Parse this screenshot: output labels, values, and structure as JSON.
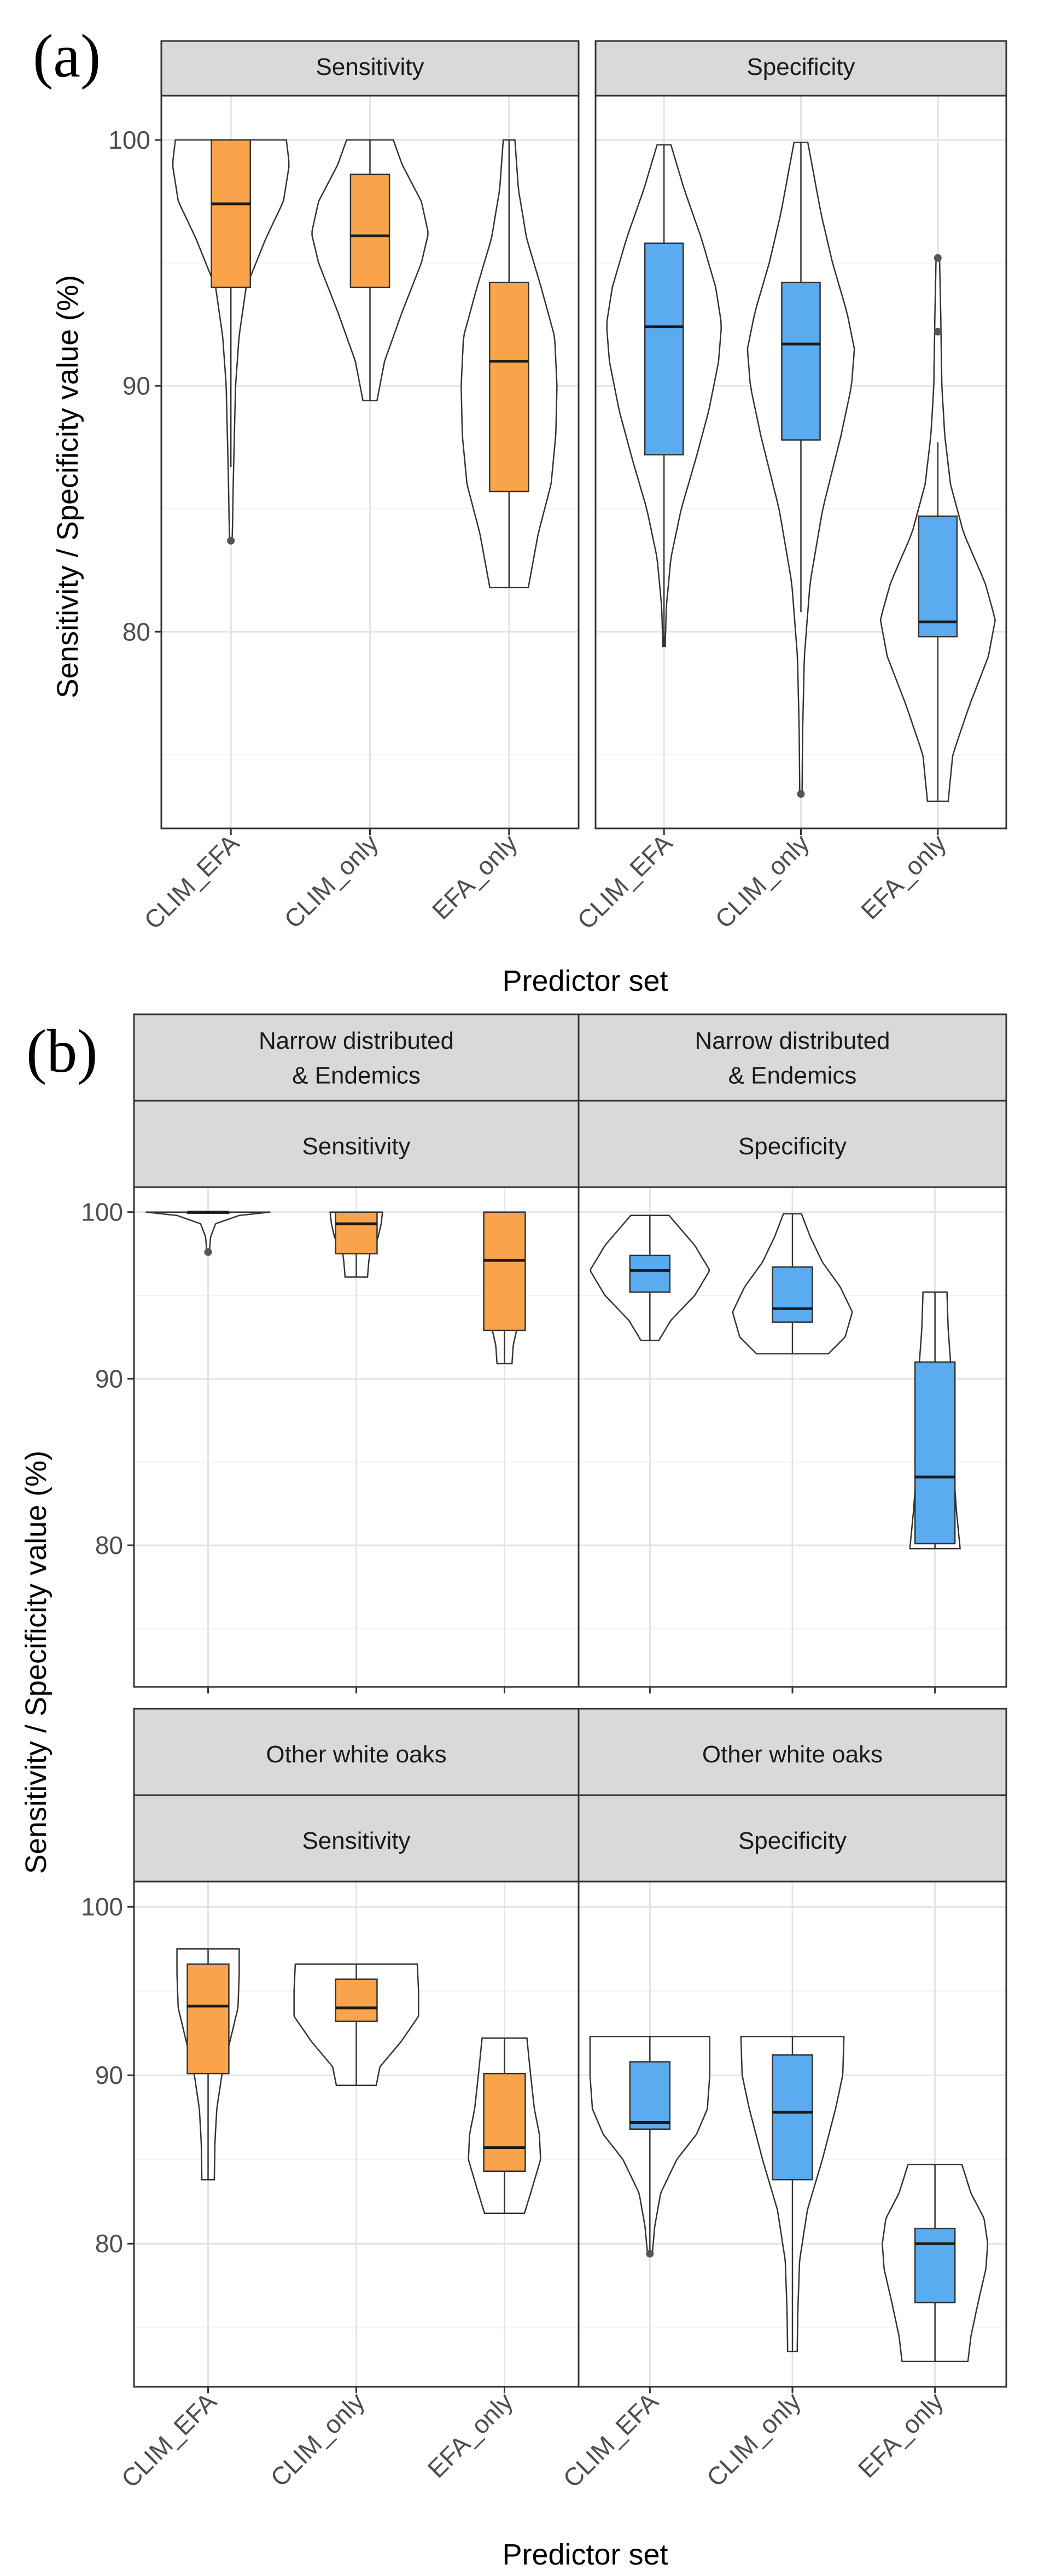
{
  "figure": {
    "x_title": "Predictor set",
    "y_title": "Sensitivity / Specificity value (%)"
  },
  "colors": {
    "sensitivity": "#f9a44a",
    "specificity": "#5aabf0",
    "strip_fill": "#d9d9d9",
    "grid_major": "#e4e4e4",
    "grid_minor": "#f2f2f2",
    "outline": "#333333"
  },
  "chart_data": [
    {
      "type": "violin+box",
      "panel_label": "(a)",
      "categories": [
        "CLIM_EFA",
        "CLIM_only",
        "EFA_only"
      ],
      "ylim": [
        72,
        101.8
      ],
      "yticks": [
        80,
        90,
        100
      ],
      "grid": true,
      "facets": [
        {
          "strip": [
            "Sensitivity"
          ],
          "color_key": "sensitivity",
          "groups": [
            {
              "q1": 94.0,
              "median": 97.4,
              "q3": 100.0,
              "wlow": 86.7,
              "whigh": 100.0,
              "outliers": [
                83.7
              ],
              "vmin": 83.6,
              "vmax": 100.0,
              "shape": [
                [
                  83.6,
                  0.02
                ],
                [
                  84.5,
                  0.03
                ],
                [
                  86,
                  0.04
                ],
                [
                  88,
                  0.06
                ],
                [
                  90,
                  0.08
                ],
                [
                  92,
                  0.14
                ],
                [
                  94,
                  0.26
                ],
                [
                  96,
                  0.6
                ],
                [
                  97.5,
                  0.9
                ],
                [
                  99,
                  1.0
                ],
                [
                  100,
                  0.95
                ]
              ]
            },
            {
              "q1": 94.0,
              "median": 96.1,
              "q3": 98.6,
              "wlow": 89.4,
              "whigh": 100.0,
              "outliers": [],
              "vmin": 89.4,
              "vmax": 100.0,
              "shape": [
                [
                  89.4,
                  0.12
                ],
                [
                  91,
                  0.25
                ],
                [
                  93,
                  0.55
                ],
                [
                  95,
                  0.88
                ],
                [
                  96.2,
                  1.0
                ],
                [
                  97.5,
                  0.88
                ],
                [
                  99,
                  0.55
                ],
                [
                  100,
                  0.4
                ]
              ]
            },
            {
              "q1": 85.7,
              "median": 91.0,
              "q3": 94.2,
              "wlow": 81.8,
              "whigh": 100.0,
              "outliers": [],
              "vmin": 81.8,
              "vmax": 100.0,
              "shape": [
                [
                  81.8,
                  0.33
                ],
                [
                  84,
                  0.5
                ],
                [
                  86,
                  0.72
                ],
                [
                  88,
                  0.8
                ],
                [
                  90,
                  0.82
                ],
                [
                  92,
                  0.78
                ],
                [
                  94,
                  0.55
                ],
                [
                  96,
                  0.3
                ],
                [
                  98,
                  0.16
                ],
                [
                  100,
                  0.1
                ]
              ]
            }
          ]
        },
        {
          "strip": [
            "Specificity"
          ],
          "color_key": "specificity",
          "groups": [
            {
              "q1": 87.2,
              "median": 92.4,
              "q3": 95.8,
              "wlow": 79.4,
              "whigh": 99.8,
              "outliers": [],
              "vmin": 79.4,
              "vmax": 99.8,
              "shape": [
                [
                  79.4,
                  0.02
                ],
                [
                  81,
                  0.04
                ],
                [
                  83,
                  0.12
                ],
                [
                  85,
                  0.3
                ],
                [
                  87,
                  0.55
                ],
                [
                  89,
                  0.78
                ],
                [
                  91,
                  0.95
                ],
                [
                  92.5,
                  1.0
                ],
                [
                  94,
                  0.9
                ],
                [
                  96,
                  0.65
                ],
                [
                  98,
                  0.35
                ],
                [
                  99.8,
                  0.12
                ]
              ]
            },
            {
              "q1": 87.8,
              "median": 91.7,
              "q3": 94.2,
              "wlow": 80.8,
              "whigh": 99.9,
              "outliers": [
                73.4
              ],
              "vmin": 73.4,
              "vmax": 99.9,
              "shape": [
                [
                  73.4,
                  0.02
                ],
                [
                  76,
                  0.03
                ],
                [
                  79,
                  0.06
                ],
                [
                  82,
                  0.16
                ],
                [
                  85,
                  0.38
                ],
                [
                  88,
                  0.7
                ],
                [
                  90,
                  0.88
                ],
                [
                  91.5,
                  0.93
                ],
                [
                  93,
                  0.8
                ],
                [
                  95,
                  0.55
                ],
                [
                  97,
                  0.35
                ],
                [
                  99.9,
                  0.12
                ]
              ]
            },
            {
              "q1": 79.8,
              "median": 80.4,
              "q3": 84.7,
              "wlow": 73.1,
              "whigh": 87.7,
              "outliers": [
                92.2,
                95.2
              ],
              "vmin": 73.1,
              "vmax": 95.2,
              "shape": [
                [
                  73.1,
                  0.18
                ],
                [
                  75,
                  0.26
                ],
                [
                  77,
                  0.55
                ],
                [
                  79,
                  0.88
                ],
                [
                  80.5,
                  1.0
                ],
                [
                  82,
                  0.82
                ],
                [
                  84,
                  0.45
                ],
                [
                  86,
                  0.22
                ],
                [
                  88,
                  0.12
                ],
                [
                  90,
                  0.07
                ],
                [
                  93,
                  0.05
                ],
                [
                  95.2,
                  0.03
                ]
              ]
            }
          ]
        }
      ]
    },
    {
      "type": "violin+box",
      "panel_label": "(b)",
      "categories": [
        "CLIM_EFA",
        "CLIM_only",
        "EFA_only"
      ],
      "ylim": [
        71.5,
        101.5
      ],
      "yticks": [
        80,
        90,
        100
      ],
      "grid": true,
      "facets": [
        {
          "strip": [
            "Narrow distributed",
            "& Endemics",
            "Sensitivity"
          ],
          "color_key": "sensitivity",
          "groups": [
            {
              "q1": 100.0,
              "median": 100.0,
              "q3": 100.0,
              "wlow": 100.0,
              "whigh": 100.0,
              "outliers": [
                97.6
              ],
              "vmin": 97.6,
              "vmax": 100.0,
              "shape": [
                [
                  97.6,
                  0.02
                ],
                [
                  98.5,
                  0.04
                ],
                [
                  99.3,
                  0.12
                ],
                [
                  99.8,
                  0.5
                ],
                [
                  100,
                  1.0
                ]
              ]
            },
            {
              "q1": 97.5,
              "median": 99.3,
              "q3": 100.0,
              "wlow": 96.1,
              "whigh": 100.0,
              "outliers": [],
              "vmin": 96.1,
              "vmax": 100.0,
              "shape": [
                [
                  96.1,
                  0.18
                ],
                [
                  97,
                  0.2
                ],
                [
                  97.6,
                  0.22
                ],
                [
                  98.5,
                  0.35
                ],
                [
                  99.3,
                  0.4
                ],
                [
                  100,
                  0.42
                ]
              ]
            },
            {
              "q1": 92.9,
              "median": 97.1,
              "q3": 100.0,
              "wlow": 90.9,
              "whigh": 100.0,
              "outliers": [],
              "vmin": 90.9,
              "vmax": 100.0,
              "shape": [
                [
                  90.9,
                  0.12
                ],
                [
                  92,
                  0.14
                ],
                [
                  93,
                  0.2
                ],
                [
                  95,
                  0.22
                ],
                [
                  97,
                  0.24
                ],
                [
                  98.5,
                  0.25
                ],
                [
                  100,
                  0.26
                ]
              ]
            }
          ]
        },
        {
          "strip": [
            "Narrow distributed",
            "& Endemics",
            "Specificity"
          ],
          "color_key": "specificity",
          "groups": [
            {
              "q1": 95.2,
              "median": 96.5,
              "q3": 97.4,
              "wlow": 92.3,
              "whigh": 99.8,
              "outliers": [],
              "vmin": 92.3,
              "vmax": 99.8,
              "shape": [
                [
                  92.3,
                  0.15
                ],
                [
                  93.5,
                  0.35
                ],
                [
                  95,
                  0.75
                ],
                [
                  96.5,
                  1.0
                ],
                [
                  98,
                  0.75
                ],
                [
                  99.8,
                  0.32
                ]
              ]
            },
            {
              "q1": 93.4,
              "median": 94.2,
              "q3": 96.7,
              "wlow": 91.5,
              "whigh": 99.9,
              "outliers": [],
              "vmin": 91.5,
              "vmax": 99.9,
              "shape": [
                [
                  91.5,
                  0.6
                ],
                [
                  92.5,
                  0.88
                ],
                [
                  94,
                  1.0
                ],
                [
                  95.5,
                  0.8
                ],
                [
                  97,
                  0.5
                ],
                [
                  98.5,
                  0.3
                ],
                [
                  99.9,
                  0.15
                ]
              ]
            },
            {
              "q1": 80.1,
              "median": 84.1,
              "q3": 91.0,
              "wlow": 79.8,
              "whigh": 95.2,
              "outliers": [],
              "vmin": 79.8,
              "vmax": 95.2,
              "shape": [
                [
                  79.8,
                  0.42
                ],
                [
                  82,
                  0.36
                ],
                [
                  85,
                  0.3
                ],
                [
                  88,
                  0.28
                ],
                [
                  91,
                  0.26
                ],
                [
                  93,
                  0.22
                ],
                [
                  95.2,
                  0.2
                ]
              ]
            }
          ]
        },
        {
          "strip": [
            "Other white oaks",
            "Sensitivity"
          ],
          "color_key": "sensitivity",
          "groups": [
            {
              "q1": 90.1,
              "median": 94.1,
              "q3": 96.6,
              "wlow": 83.8,
              "whigh": 97.5,
              "outliers": [],
              "vmin": 83.8,
              "vmax": 97.5,
              "shape": [
                [
                  83.8,
                  0.1
                ],
                [
                  86,
                  0.11
                ],
                [
                  88,
                  0.14
                ],
                [
                  90,
                  0.22
                ],
                [
                  92,
                  0.35
                ],
                [
                  94,
                  0.48
                ],
                [
                  96,
                  0.5
                ],
                [
                  97.5,
                  0.5
                ]
              ]
            },
            {
              "q1": 93.2,
              "median": 94.0,
              "q3": 95.7,
              "wlow": 89.4,
              "whigh": 96.6,
              "outliers": [],
              "vmin": 89.4,
              "vmax": 96.6,
              "shape": [
                [
                  89.4,
                  0.32
                ],
                [
                  90.5,
                  0.38
                ],
                [
                  92,
                  0.72
                ],
                [
                  93.5,
                  1.0
                ],
                [
                  95,
                  1.0
                ],
                [
                  96.6,
                  0.98
                ]
              ]
            },
            {
              "q1": 84.3,
              "median": 85.7,
              "q3": 90.1,
              "wlow": 81.8,
              "whigh": 92.2,
              "outliers": [],
              "vmin": 81.8,
              "vmax": 92.2,
              "shape": [
                [
                  81.8,
                  0.32
                ],
                [
                  83,
                  0.42
                ],
                [
                  85,
                  0.58
                ],
                [
                  86.5,
                  0.56
                ],
                [
                  88,
                  0.48
                ],
                [
                  90,
                  0.42
                ],
                [
                  92.2,
                  0.36
                ]
              ]
            }
          ]
        },
        {
          "strip": [
            "Other white oaks",
            "Specificity"
          ],
          "color_key": "specificity",
          "groups": [
            {
              "q1": 86.8,
              "median": 87.2,
              "q3": 90.8,
              "wlow": 79.4,
              "whigh": 92.3,
              "outliers": [
                79.4
              ],
              "vmin": 79.4,
              "vmax": 92.3,
              "shape": [
                [
                  79.4,
                  0.04
                ],
                [
                  81,
                  0.08
                ],
                [
                  83,
                  0.18
                ],
                [
                  85,
                  0.45
                ],
                [
                  86.5,
                  0.78
                ],
                [
                  88,
                  0.96
                ],
                [
                  90,
                  1.0
                ],
                [
                  92.3,
                  1.0
                ]
              ]
            },
            {
              "q1": 83.8,
              "median": 87.8,
              "q3": 91.2,
              "wlow": 73.6,
              "whigh": 92.3,
              "outliers": [],
              "vmin": 73.6,
              "vmax": 92.3,
              "shape": [
                [
                  73.6,
                  0.08
                ],
                [
                  76,
                  0.09
                ],
                [
                  79,
                  0.12
                ],
                [
                  82,
                  0.25
                ],
                [
                  85,
                  0.5
                ],
                [
                  88,
                  0.72
                ],
                [
                  90,
                  0.84
                ],
                [
                  92.3,
                  0.86
                ]
              ]
            },
            {
              "q1": 76.5,
              "median": 80.0,
              "q3": 80.9,
              "wlow": 73.0,
              "whigh": 84.7,
              "outliers": [],
              "vmin": 73.0,
              "vmax": 84.7,
              "shape": [
                [
                  73.0,
                  0.55
                ],
                [
                  74.5,
                  0.6
                ],
                [
                  76.5,
                  0.72
                ],
                [
                  78.5,
                  0.85
                ],
                [
                  80,
                  0.88
                ],
                [
                  81.5,
                  0.82
                ],
                [
                  83,
                  0.6
                ],
                [
                  84.7,
                  0.45
                ]
              ]
            }
          ]
        }
      ]
    }
  ]
}
